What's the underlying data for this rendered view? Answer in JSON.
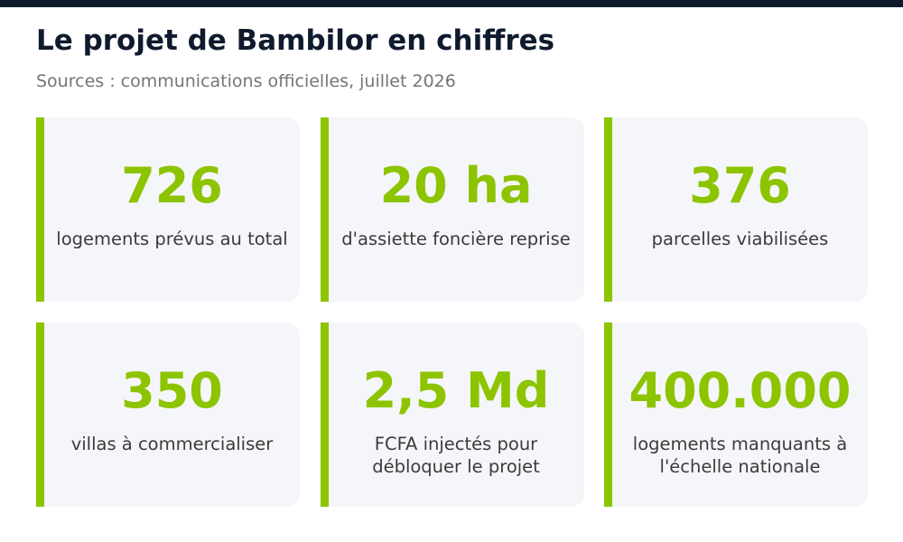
{
  "header": {
    "title": "Le projet de Bambilor en chiffres",
    "subtitle": "Sources : communications officielles, juillet 2026"
  },
  "colors": {
    "accent": "#8dc400",
    "title": "#0f1b2d",
    "card_background": "#f5f6fa",
    "top_bar": "#0f1b2d"
  },
  "stats": [
    {
      "value": "726",
      "label": "logements prévus au total"
    },
    {
      "value": "20 ha",
      "label": "d'assiette foncière reprise"
    },
    {
      "value": "376",
      "label": "parcelles viabilisées"
    },
    {
      "value": "350",
      "label": "villas à commercialiser"
    },
    {
      "value": "2,5 Md",
      "label": "FCFA injectés pour débloquer le projet"
    },
    {
      "value": "400.000",
      "label": "logements manquants à l'échelle nationale"
    }
  ]
}
